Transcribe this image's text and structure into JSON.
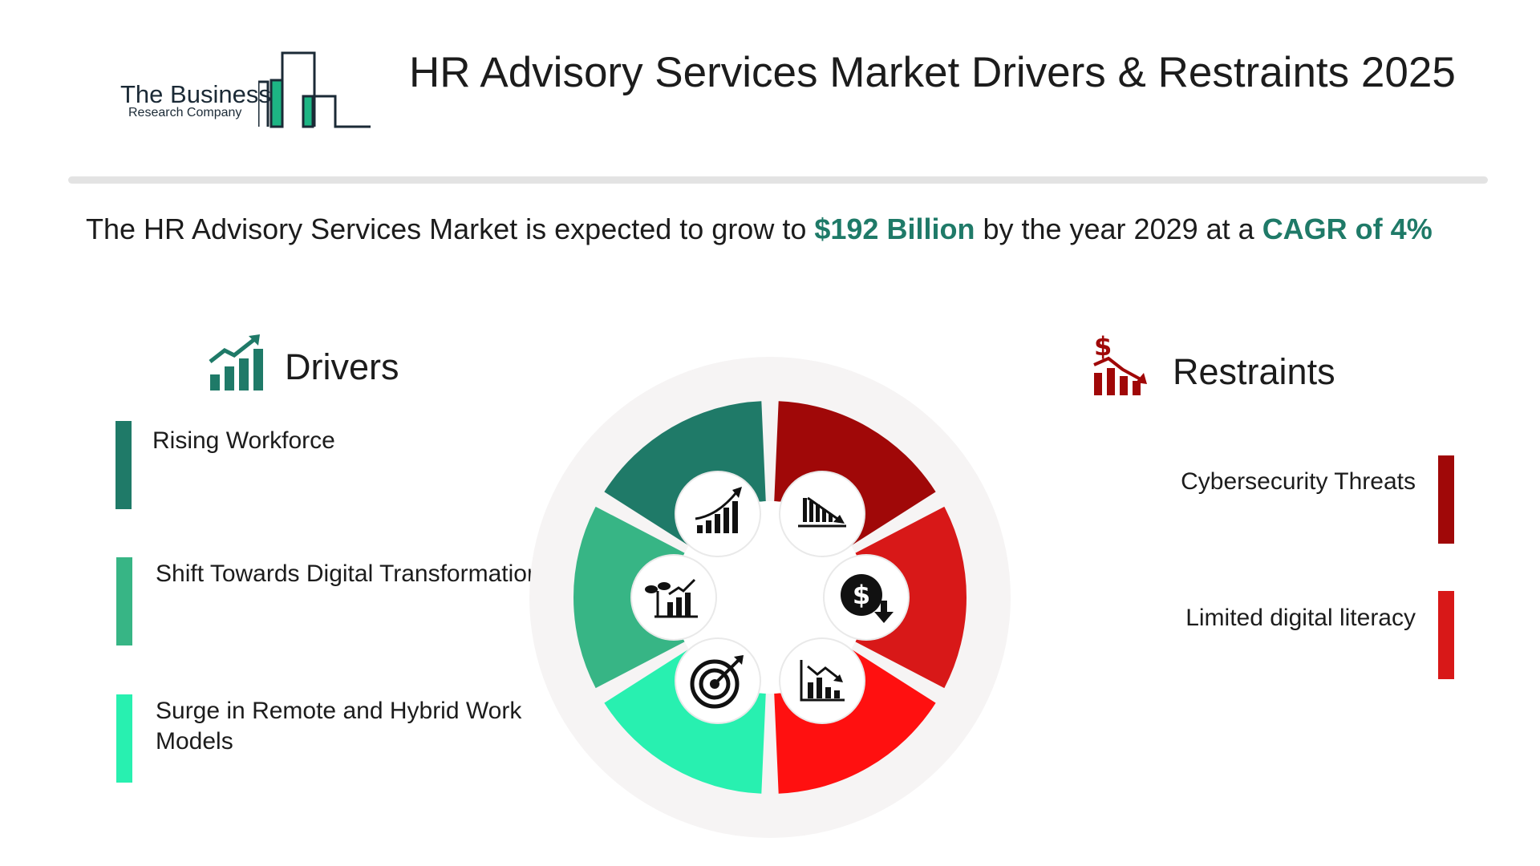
{
  "logo": {
    "line1": "The Business",
    "line2": "Research Company",
    "colors": {
      "accent": "#1db584",
      "dark": "#1b2a36"
    }
  },
  "title": "HR Advisory Services Market Drivers & Restraints 2025",
  "intro": {
    "part1": "The  HR Advisory Services Market  is expected to grow to ",
    "highlight1": "$192 Billion",
    "part2": "  by the year 2029 at a ",
    "highlight2": "CAGR of  4%"
  },
  "drivers": {
    "title": "Drivers",
    "icon": "chart-growth-icon",
    "items": [
      {
        "label": "Rising Workforce",
        "color": "#1f7a68"
      },
      {
        "label": "Shift Towards Digital Transformation",
        "color": "#37b585"
      },
      {
        "label": "Surge in Remote and Hybrid Work Models",
        "color": "#28f0b0"
      }
    ]
  },
  "restraints": {
    "title": "Restraints",
    "icon": "dollar-decline-icon",
    "items": [
      {
        "label": "Cybersecurity Threats",
        "color": "#a00808"
      },
      {
        "label": "Limited digital literacy",
        "color": "#d81818"
      }
    ]
  },
  "wheel": {
    "segment_colors": [
      "#a00808",
      "#d81818",
      "#ff1010",
      "#28f0b0",
      "#37b585",
      "#1f7a68"
    ],
    "icons": [
      "bar-chart-decline-icon",
      "dollar-down-icon",
      "line-chart-decline-icon",
      "target-icon",
      "plant-growth-chart-icon",
      "growth-chart-icon"
    ]
  }
}
